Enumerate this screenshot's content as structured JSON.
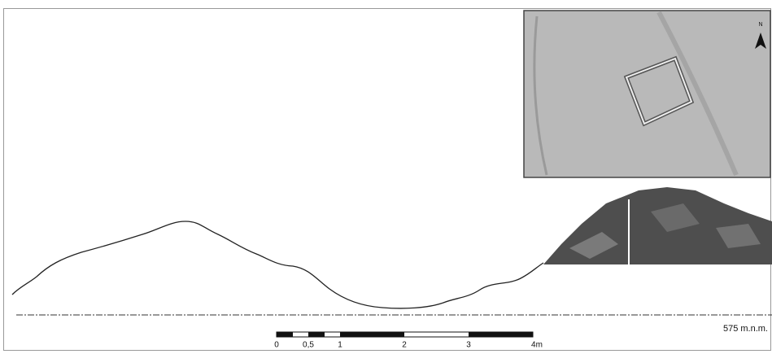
{
  "datum_label": "575 m.n.m.",
  "north_arrow": "N",
  "scale_bar": {
    "labels": [
      "0",
      "0,5",
      "1",
      "2",
      "3",
      "4m"
    ]
  }
}
